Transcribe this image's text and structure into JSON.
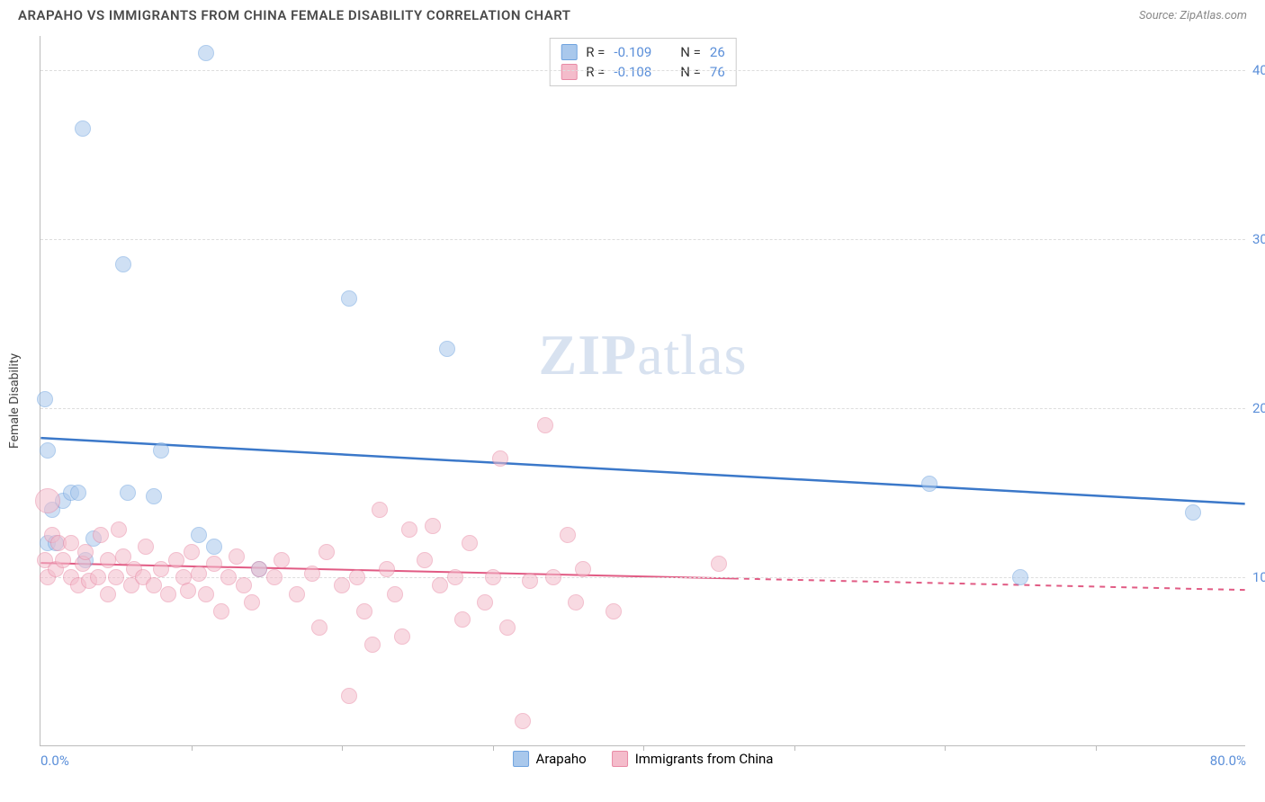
{
  "title": "ARAPAHO VS IMMIGRANTS FROM CHINA FEMALE DISABILITY CORRELATION CHART",
  "source_label": "Source: ZipAtlas.com",
  "y_axis_label": "Female Disability",
  "watermark_a": "ZIP",
  "watermark_b": "atlas",
  "legend_top": {
    "series": [
      {
        "swatch_fill": "#a9c8ec",
        "swatch_border": "#6fa3df",
        "r_label": "R = ",
        "r_value": "-0.109",
        "n_label": "N = ",
        "n_value": "26"
      },
      {
        "swatch_fill": "#f4bccb",
        "swatch_border": "#e88aa5",
        "r_label": "R = ",
        "r_value": "-0.108",
        "n_label": "N = ",
        "n_value": "76"
      }
    ]
  },
  "legend_bottom": {
    "items": [
      {
        "swatch_fill": "#a9c8ec",
        "swatch_border": "#6fa3df",
        "label": "Arapaho"
      },
      {
        "swatch_fill": "#f4bccb",
        "swatch_border": "#e88aa5",
        "label": "Immigrants from China"
      }
    ]
  },
  "chart": {
    "type": "scatter",
    "xlim": [
      0,
      80
    ],
    "ylim": [
      0,
      42
    ],
    "x_ticks_labeled": [
      {
        "v": 0,
        "label": "0.0%",
        "align": "left"
      },
      {
        "v": 80,
        "label": "80.0%",
        "align": "right"
      }
    ],
    "x_tick_marks": [
      10,
      20,
      30,
      40,
      50,
      60,
      70
    ],
    "y_ticks": [
      {
        "v": 10,
        "label": "10.0%"
      },
      {
        "v": 20,
        "label": "20.0%"
      },
      {
        "v": 30,
        "label": "30.0%"
      },
      {
        "v": 40,
        "label": "40.0%"
      }
    ],
    "grid_color": "#dddddd",
    "axis_color": "#bbbbbb",
    "tick_label_color": "#5b8fd9",
    "background_color": "#ffffff",
    "series": [
      {
        "name": "Arapaho",
        "fill": "#a9c8ec",
        "stroke": "#6fa3df",
        "fill_opacity": 0.55,
        "radius": 9,
        "trend": {
          "color": "#3b78c9",
          "width": 2.5,
          "y_at_x0": 18.2,
          "y_at_xmax": 14.3,
          "solid_to_x": 80
        },
        "points": [
          [
            0.3,
            20.5
          ],
          [
            0.5,
            17.5
          ],
          [
            0.5,
            12.0
          ],
          [
            0.8,
            14.0
          ],
          [
            1.0,
            12.0
          ],
          [
            1.5,
            14.5
          ],
          [
            2.0,
            15.0
          ],
          [
            2.5,
            15.0
          ],
          [
            2.8,
            36.5
          ],
          [
            3.0,
            11.0
          ],
          [
            3.5,
            12.3
          ],
          [
            5.5,
            28.5
          ],
          [
            5.8,
            15.0
          ],
          [
            7.5,
            14.8
          ],
          [
            8.0,
            17.5
          ],
          [
            10.5,
            12.5
          ],
          [
            11.0,
            41.0
          ],
          [
            11.5,
            11.8
          ],
          [
            14.5,
            10.5
          ],
          [
            20.5,
            26.5
          ],
          [
            27.0,
            23.5
          ],
          [
            59.0,
            15.5
          ],
          [
            65.0,
            10.0
          ],
          [
            76.5,
            13.8
          ]
        ]
      },
      {
        "name": "Immigrants from China",
        "fill": "#f4bccb",
        "stroke": "#e88aa5",
        "fill_opacity": 0.55,
        "radius": 9,
        "trend": {
          "color": "#e15b84",
          "width": 2,
          "y_at_x0": 10.8,
          "y_at_xmax": 9.2,
          "solid_to_x": 46
        },
        "points": [
          [
            0.3,
            11.0
          ],
          [
            0.5,
            10.0
          ],
          [
            0.5,
            14.5,
            14
          ],
          [
            0.8,
            12.5
          ],
          [
            1.0,
            10.5
          ],
          [
            1.2,
            12.0
          ],
          [
            1.5,
            11.0
          ],
          [
            2.0,
            12.0
          ],
          [
            2.0,
            10.0
          ],
          [
            2.5,
            9.5
          ],
          [
            2.8,
            10.8
          ],
          [
            3.0,
            11.5
          ],
          [
            3.2,
            9.8
          ],
          [
            3.8,
            10.0
          ],
          [
            4.0,
            12.5
          ],
          [
            4.5,
            11.0
          ],
          [
            4.5,
            9.0
          ],
          [
            5.0,
            10.0
          ],
          [
            5.2,
            12.8
          ],
          [
            5.5,
            11.2
          ],
          [
            6.0,
            9.5
          ],
          [
            6.2,
            10.5
          ],
          [
            6.8,
            10.0
          ],
          [
            7.0,
            11.8
          ],
          [
            7.5,
            9.5
          ],
          [
            8.0,
            10.5
          ],
          [
            8.5,
            9.0
          ],
          [
            9.0,
            11.0
          ],
          [
            9.5,
            10.0
          ],
          [
            9.8,
            9.2
          ],
          [
            10.0,
            11.5
          ],
          [
            10.5,
            10.2
          ],
          [
            11.0,
            9.0
          ],
          [
            11.5,
            10.8
          ],
          [
            12.0,
            8.0
          ],
          [
            12.5,
            10.0
          ],
          [
            13.0,
            11.2
          ],
          [
            13.5,
            9.5
          ],
          [
            14.0,
            8.5
          ],
          [
            14.5,
            10.5
          ],
          [
            15.5,
            10.0
          ],
          [
            16.0,
            11.0
          ],
          [
            17.0,
            9.0
          ],
          [
            18.0,
            10.2
          ],
          [
            18.5,
            7.0
          ],
          [
            19.0,
            11.5
          ],
          [
            20.0,
            9.5
          ],
          [
            20.5,
            3.0
          ],
          [
            21.0,
            10.0
          ],
          [
            21.5,
            8.0
          ],
          [
            22.0,
            6.0
          ],
          [
            22.5,
            14.0
          ],
          [
            23.0,
            10.5
          ],
          [
            23.5,
            9.0
          ],
          [
            24.0,
            6.5
          ],
          [
            24.5,
            12.8
          ],
          [
            25.5,
            11.0
          ],
          [
            26.0,
            13.0
          ],
          [
            26.5,
            9.5
          ],
          [
            27.5,
            10.0
          ],
          [
            28.0,
            7.5
          ],
          [
            28.5,
            12.0
          ],
          [
            29.5,
            8.5
          ],
          [
            30.0,
            10.0
          ],
          [
            30.5,
            17.0
          ],
          [
            31.0,
            7.0
          ],
          [
            32.0,
            1.5
          ],
          [
            32.5,
            9.8
          ],
          [
            33.5,
            19.0
          ],
          [
            34.0,
            10.0
          ],
          [
            35.0,
            12.5
          ],
          [
            35.5,
            8.5
          ],
          [
            36.0,
            10.5
          ],
          [
            38.0,
            8.0
          ],
          [
            45.0,
            10.8
          ]
        ]
      }
    ]
  }
}
